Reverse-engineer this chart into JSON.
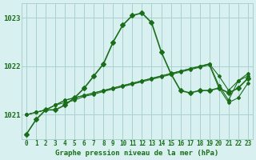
{
  "title": "Graphe pression niveau de la mer (hPa)",
  "background_color": "#d8f0f0",
  "line_color": "#1a6e1a",
  "grid_color": "#aacfcf",
  "hours": [
    0,
    1,
    2,
    3,
    4,
    5,
    6,
    7,
    8,
    9,
    10,
    11,
    12,
    13,
    14,
    15,
    16,
    17,
    18,
    19,
    20,
    21,
    22,
    23
  ],
  "series1": [
    1020.6,
    1020.9,
    1021.1,
    1021.1,
    1021.2,
    1021.35,
    1021.55,
    1021.8,
    1022.05,
    1022.5,
    1022.85,
    1023.05,
    1023.1,
    1022.9,
    1022.3,
    1021.85,
    1021.5,
    1021.45,
    1021.5,
    1021.5,
    1021.55,
    1021.45,
    1021.55,
    1021.75
  ],
  "series2": [
    1021.0,
    1021.05,
    1021.1,
    1021.2,
    1021.3,
    1021.35,
    1021.4,
    1021.45,
    1021.5,
    1021.55,
    1021.6,
    1021.65,
    1021.7,
    1021.75,
    1021.8,
    1021.85,
    1021.9,
    1021.95,
    1022.0,
    1022.05,
    1021.8,
    1021.5,
    1021.7,
    1021.85
  ],
  "series3": [
    1021.0,
    1021.05,
    1021.1,
    1021.2,
    1021.3,
    1021.35,
    1021.4,
    1021.45,
    1021.5,
    1021.55,
    1021.6,
    1021.65,
    1021.7,
    1021.75,
    1021.8,
    1021.85,
    1021.9,
    1021.95,
    1022.0,
    1022.05,
    1021.6,
    1021.3,
    1021.7,
    1021.8
  ],
  "series4": [
    1021.0,
    1021.05,
    1021.1,
    1021.2,
    1021.25,
    1021.3,
    1021.38,
    1021.42,
    1021.48,
    1021.53,
    1021.58,
    1021.63,
    1021.68,
    1021.73,
    1021.78,
    1021.83,
    1021.88,
    1021.93,
    1021.98,
    1022.03,
    1021.55,
    1021.25,
    1021.35,
    1021.65
  ],
  "ylim": [
    1020.5,
    1023.3
  ],
  "yticks": [
    1021,
    1022,
    1023
  ],
  "xlabel_color": "#1a6e1a",
  "title_color": "#1a6e1a",
  "marker": "D",
  "marker_size": 3
}
